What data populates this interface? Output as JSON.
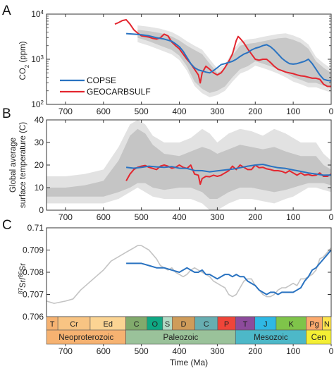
{
  "chart_data": [
    {
      "panel": "A",
      "type": "line",
      "ylabel": "CO2 (ppm)",
      "yscale": "log",
      "ylim": [
        100,
        10000
      ],
      "xlim": [
        750,
        0
      ],
      "xticks": [
        700,
        600,
        500,
        400,
        300,
        200,
        100,
        0
      ],
      "yticks": [
        {
          "v": 100,
          "label": "10",
          "sup": "2"
        },
        {
          "v": 1000,
          "label": "10",
          "sup": "3"
        },
        {
          "v": 10000,
          "label": "10",
          "sup": "4"
        }
      ],
      "legend": {
        "placement": "bottom-left",
        "entries": [
          "COPSE",
          "GEOCARBSULF"
        ]
      },
      "colors": {
        "COPSE": "#2a73c1",
        "GEOCARBSULF": "#e3262f",
        "band_outer": "#e4e4e4",
        "band_inner": "#c8c8c8"
      },
      "band": {
        "x": [
          510,
          480,
          450,
          420,
          400,
          380,
          360,
          340,
          320,
          300,
          280,
          260,
          240,
          220,
          200,
          180,
          160,
          140,
          120,
          100,
          80,
          60,
          40,
          20,
          0
        ],
        "lower": [
          3000,
          2500,
          2000,
          1600,
          1200,
          700,
          320,
          220,
          180,
          200,
          250,
          400,
          600,
          700,
          900,
          800,
          700,
          600,
          500,
          400,
          350,
          300,
          300,
          260,
          230
        ],
        "upper": [
          4500,
          4200,
          3800,
          3200,
          2600,
          2000,
          1600,
          1300,
          800,
          500,
          600,
          1200,
          2000,
          2200,
          2300,
          2500,
          2700,
          2900,
          3000,
          2700,
          2300,
          1700,
          900,
          650,
          500
        ]
      },
      "series": [
        {
          "name": "COPSE",
          "x": [
            540,
            520,
            500,
            480,
            460,
            440,
            420,
            410,
            400,
            390,
            380,
            370,
            360,
            350,
            340,
            330,
            320,
            310,
            300,
            290,
            280,
            270,
            260,
            250,
            240,
            230,
            220,
            210,
            200,
            190,
            180,
            170,
            160,
            150,
            140,
            130,
            120,
            110,
            100,
            90,
            80,
            70,
            60,
            50,
            40,
            30,
            20,
            10,
            0
          ],
          "y": [
            3700,
            3600,
            3500,
            3300,
            3000,
            2800,
            2500,
            2200,
            1900,
            1500,
            1100,
            800,
            650,
            580,
            550,
            520,
            500,
            560,
            650,
            760,
            800,
            850,
            900,
            1000,
            1150,
            1300,
            1400,
            1600,
            1750,
            1850,
            2000,
            2100,
            1900,
            1600,
            1300,
            1050,
            900,
            800,
            780,
            800,
            850,
            900,
            1000,
            800,
            600,
            450,
            360,
            340,
            330
          ]
        },
        {
          "name": "GEOCARBSULF",
          "x": [
            570,
            560,
            550,
            540,
            530,
            520,
            510,
            500,
            490,
            480,
            470,
            460,
            450,
            440,
            430,
            420,
            410,
            400,
            390,
            380,
            370,
            360,
            350,
            345,
            340,
            330,
            320,
            310,
            300,
            290,
            280,
            270,
            260,
            250,
            245,
            240,
            230,
            220,
            210,
            200,
            190,
            180,
            170,
            160,
            150,
            140,
            130,
            120,
            110,
            100,
            90,
            80,
            70,
            60,
            50,
            40,
            30,
            20,
            10,
            0
          ],
          "y": [
            6000,
            6500,
            7200,
            7500,
            6000,
            4500,
            3800,
            3300,
            3200,
            3100,
            2900,
            2800,
            3000,
            3600,
            3300,
            2400,
            2000,
            1700,
            1300,
            1000,
            800,
            600,
            450,
            300,
            500,
            700,
            600,
            500,
            450,
            500,
            650,
            900,
            1300,
            2600,
            3200,
            2900,
            2300,
            1700,
            1300,
            1000,
            950,
            1000,
            1000,
            850,
            700,
            600,
            560,
            520,
            500,
            480,
            450,
            430,
            420,
            400,
            380,
            380,
            360,
            280,
            250,
            250
          ]
        }
      ]
    },
    {
      "panel": "B",
      "type": "line",
      "ylabel": [
        "Global average",
        "surface temperature (C)"
      ],
      "ylim": [
        0,
        40
      ],
      "xlim": [
        750,
        0
      ],
      "xticks": [
        700,
        600,
        500,
        400,
        300,
        200,
        100,
        0
      ],
      "yticks": [
        0,
        10,
        20,
        30,
        40
      ],
      "colors": {
        "COPSE": "#2a73c1",
        "GEOCARBSULF": "#e3262f",
        "band_outer": "#e2e2e2",
        "band_inner": "#c5c5c5"
      },
      "band_outer": {
        "x": [
          750,
          700,
          650,
          600,
          560,
          530,
          510,
          490,
          470,
          440,
          400,
          370,
          340,
          320,
          300,
          270,
          240,
          210,
          180,
          150,
          120,
          100,
          80,
          60,
          40,
          20,
          0
        ],
        "lower": [
          3,
          3,
          3,
          3,
          5,
          8,
          10,
          8,
          6,
          5,
          5,
          5,
          3,
          0,
          0,
          3,
          5,
          5,
          4,
          3,
          5,
          6,
          8,
          10,
          10,
          9,
          8
        ],
        "upper": [
          15,
          15,
          16,
          18,
          28,
          38,
          40,
          38,
          33,
          30,
          30,
          32,
          36,
          34,
          30,
          34,
          36,
          35,
          33,
          36,
          34,
          32,
          30,
          30,
          30,
          25,
          22
        ]
      },
      "band_inner": {
        "x": [
          750,
          700,
          650,
          600,
          560,
          530,
          510,
          490,
          470,
          440,
          400,
          370,
          340,
          320,
          300,
          270,
          240,
          210,
          180,
          150,
          120,
          100,
          80,
          60,
          40,
          20,
          0
        ],
        "lower": [
          6,
          6,
          6,
          6,
          8,
          10,
          12,
          12,
          10,
          9,
          10,
          10,
          8,
          5,
          5,
          8,
          10,
          10,
          9,
          8,
          9,
          10,
          11,
          12,
          12,
          12,
          11
        ],
        "upper": [
          10,
          10,
          11,
          13,
          22,
          33,
          36,
          34,
          29,
          25,
          24,
          26,
          28,
          27,
          25,
          27,
          29,
          28,
          27,
          28,
          26,
          25,
          24,
          24,
          24,
          20,
          18
        ]
      },
      "series": [
        {
          "name": "COPSE",
          "x": [
            540,
            520,
            500,
            480,
            460,
            440,
            420,
            400,
            380,
            360,
            340,
            320,
            300,
            280,
            260,
            240,
            220,
            200,
            180,
            160,
            140,
            120,
            100,
            80,
            60,
            40,
            20,
            0
          ],
          "y": [
            19,
            18.6,
            19,
            19.5,
            19.2,
            19,
            19.3,
            18.6,
            18.5,
            17.6,
            17.5,
            17,
            17.4,
            17.8,
            18.2,
            18.8,
            19.5,
            20,
            20.3,
            19.5,
            18.8,
            18.5,
            17.8,
            17.2,
            16.5,
            16,
            15.5,
            15.6
          ]
        },
        {
          "name": "GEOCARBSULF",
          "x": [
            540,
            530,
            520,
            510,
            500,
            490,
            480,
            470,
            460,
            450,
            440,
            430,
            420,
            410,
            400,
            390,
            380,
            370,
            360,
            350,
            345,
            340,
            330,
            320,
            310,
            300,
            290,
            280,
            270,
            260,
            250,
            240,
            230,
            220,
            210,
            200,
            190,
            180,
            170,
            160,
            150,
            140,
            130,
            120,
            110,
            100,
            90,
            80,
            70,
            60,
            50,
            40,
            30,
            20,
            10,
            0
          ],
          "y": [
            13,
            16,
            18,
            19,
            19.5,
            19.8,
            19,
            18.5,
            18,
            19.5,
            20,
            19.5,
            18.6,
            19,
            20,
            19,
            18.5,
            20,
            16,
            15.5,
            11.5,
            14,
            15,
            14.8,
            15.5,
            15,
            15.5,
            16.5,
            17.5,
            19.5,
            18,
            20,
            19,
            18,
            18,
            20,
            18.8,
            19,
            18.3,
            18,
            17.5,
            17.5,
            17.2,
            16.5,
            17.5,
            16.5,
            15.5,
            16.5,
            15.5,
            15.8,
            15.3,
            15.5,
            16.5,
            15,
            15,
            16
          ]
        }
      ]
    },
    {
      "panel": "C",
      "type": "line",
      "ylabel": "87Sr/86Sr",
      "ylim": [
        0.706,
        0.71
      ],
      "xlim": [
        750,
        0
      ],
      "xticks": [
        700,
        600,
        500,
        400,
        300,
        200,
        100,
        0
      ],
      "yticks": [
        "0.706",
        "0.707",
        "0.708",
        "0.709",
        "0.71"
      ],
      "xlabel": "Time (Ma)",
      "colors": {
        "model": "#2a73c1",
        "data": "#c4c4c4"
      },
      "series": [
        {
          "name": "",
          "color_key": "data",
          "x": [
            750,
            730,
            700,
            680,
            660,
            640,
            620,
            600,
            580,
            560,
            540,
            530,
            520,
            510,
            500,
            490,
            480,
            470,
            460,
            450,
            440,
            430,
            420,
            410,
            400,
            390,
            380,
            370,
            360,
            350,
            340,
            330,
            320,
            310,
            300,
            290,
            280,
            270,
            260,
            250,
            240,
            230,
            220,
            210,
            200,
            190,
            180,
            170,
            160,
            150,
            140,
            130,
            120,
            110,
            100,
            90,
            80,
            70,
            60,
            50,
            40,
            30,
            20,
            10,
            0
          ],
          "y": [
            0.7067,
            0.7066,
            0.7067,
            0.7068,
            0.7072,
            0.7075,
            0.7078,
            0.7081,
            0.7085,
            0.7087,
            0.7089,
            0.709,
            0.7091,
            0.7092,
            0.7092,
            0.7091,
            0.709,
            0.7088,
            0.7086,
            0.7083,
            0.7082,
            0.7081,
            0.7082,
            0.708,
            0.7079,
            0.7078,
            0.7079,
            0.7081,
            0.7082,
            0.7081,
            0.708,
            0.7079,
            0.7078,
            0.7076,
            0.7075,
            0.7074,
            0.7073,
            0.707,
            0.7069,
            0.707,
            0.7073,
            0.7076,
            0.7077,
            0.7077,
            0.7074,
            0.7072,
            0.707,
            0.7069,
            0.7069,
            0.707,
            0.7072,
            0.7073,
            0.7073,
            0.7074,
            0.7075,
            0.7074,
            0.7077,
            0.7077,
            0.7078,
            0.7079,
            0.7081,
            0.7086,
            0.7087,
            0.7089,
            0.7091
          ]
        },
        {
          "name": "",
          "color_key": "model",
          "x": [
            540,
            520,
            500,
            480,
            460,
            440,
            420,
            400,
            390,
            380,
            370,
            360,
            350,
            340,
            330,
            320,
            310,
            300,
            290,
            280,
            270,
            260,
            250,
            240,
            230,
            220,
            210,
            200,
            190,
            180,
            170,
            160,
            150,
            140,
            130,
            120,
            110,
            100,
            90,
            80,
            70,
            60,
            50,
            40,
            30,
            20,
            10,
            0
          ],
          "y": [
            0.7084,
            0.7084,
            0.7084,
            0.7083,
            0.7082,
            0.7082,
            0.7081,
            0.708,
            0.7081,
            0.7082,
            0.7081,
            0.708,
            0.708,
            0.7081,
            0.7079,
            0.7079,
            0.7078,
            0.7077,
            0.7078,
            0.7079,
            0.7079,
            0.7078,
            0.7079,
            0.7078,
            0.7078,
            0.7076,
            0.7075,
            0.7074,
            0.7072,
            0.7071,
            0.707,
            0.7071,
            0.7071,
            0.707,
            0.7071,
            0.7071,
            0.7071,
            0.7071,
            0.7072,
            0.7073,
            0.7076,
            0.7078,
            0.7081,
            0.7082,
            0.7084,
            0.7086,
            0.7088,
            0.709
          ]
        }
      ]
    }
  ],
  "panels": {
    "a": "A",
    "b": "B",
    "c": "C"
  },
  "legend": {
    "copse": "COPSE",
    "geocarbsulf": "GEOCARBSULF"
  },
  "axis_labels": {
    "co2_main": "CO",
    "co2_sub": "2",
    "co2_unit": " (ppm)",
    "temp_line1": "Global average",
    "temp_line2": "surface temperature (C)",
    "sr_sup1": "87",
    "sr_main1": "Sr/",
    "sr_sup2": "86",
    "sr_main2": "Sr",
    "time": "Time (Ma)"
  },
  "timescale": {
    "periods": [
      {
        "label": "T",
        "start": 750,
        "end": 720,
        "color": "#f6b271"
      },
      {
        "label": "Cr",
        "start": 720,
        "end": 635,
        "color": "#f8c483"
      },
      {
        "label": "Ed",
        "start": 635,
        "end": 541,
        "color": "#fbd493"
      },
      {
        "label": "C",
        "start": 541,
        "end": 485,
        "color": "#81aa6c"
      },
      {
        "label": "O",
        "start": 485,
        "end": 444,
        "color": "#0fa883"
      },
      {
        "label": "S",
        "start": 444,
        "end": 419,
        "color": "#b3dbc6"
      },
      {
        "label": "D",
        "start": 419,
        "end": 359,
        "color": "#cf9c5a"
      },
      {
        "label": "C",
        "start": 359,
        "end": 299,
        "color": "#67aeb1"
      },
      {
        "label": "P",
        "start": 299,
        "end": 252,
        "color": "#ef4539"
      },
      {
        "label": "T",
        "start": 252,
        "end": 201,
        "color": "#8d4b9c"
      },
      {
        "label": "J",
        "start": 201,
        "end": 145,
        "color": "#2fb8e4"
      },
      {
        "label": "K",
        "start": 145,
        "end": 66,
        "color": "#7fc44a"
      },
      {
        "label": "Pg",
        "start": 66,
        "end": 23,
        "color": "#fcaa6d"
      },
      {
        "label": "N",
        "start": 23,
        "end": 0,
        "color": "#fde34c"
      }
    ],
    "eras": [
      {
        "label": "Neoproterozoic",
        "start": 750,
        "end": 541,
        "color": "#f6b271"
      },
      {
        "label": "Paleozoic",
        "start": 541,
        "end": 252,
        "color": "#9ac29a"
      },
      {
        "label": "Mesozoic",
        "start": 252,
        "end": 66,
        "color": "#4db8c8"
      },
      {
        "label": "Cen",
        "start": 66,
        "end": 0,
        "color": "#f4ef34"
      }
    ]
  }
}
